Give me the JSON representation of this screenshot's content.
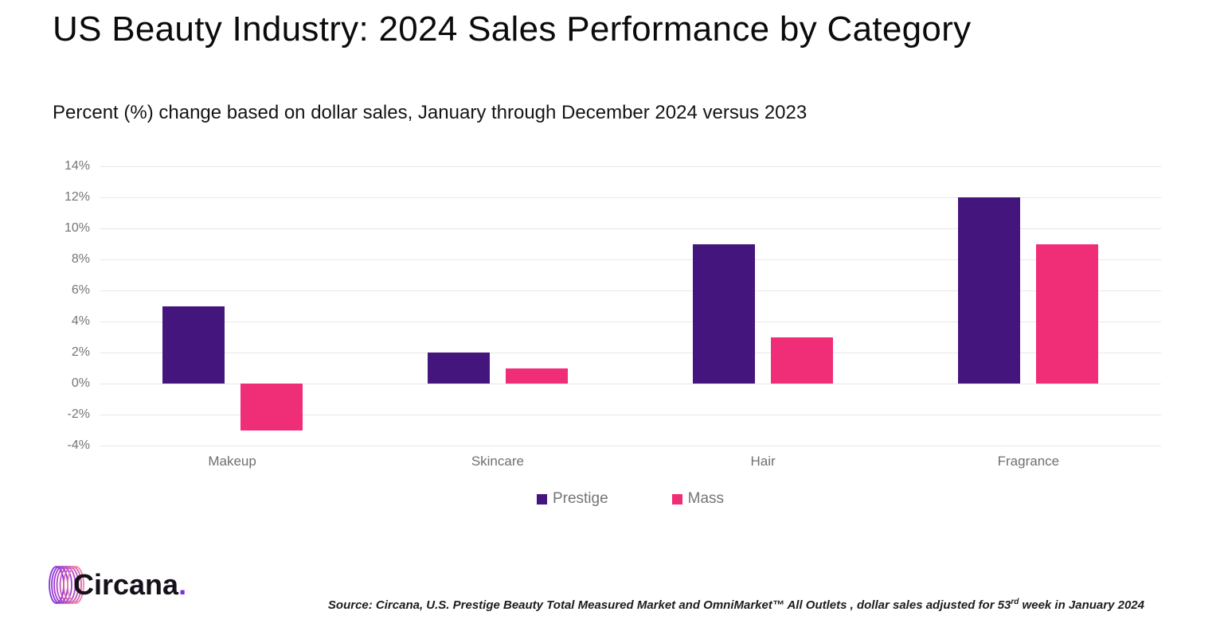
{
  "header": {
    "title": "US Beauty Industry: 2024 Sales Performance by Category",
    "subtitle": "Percent (%) change based on dollar sales, January through December 2024 versus 2023"
  },
  "chart_data": {
    "type": "bar",
    "categories": [
      "Makeup",
      "Skincare",
      "Hair",
      "Fragrance"
    ],
    "series": [
      {
        "name": "Prestige",
        "color": "#44157c",
        "values": [
          5,
          2,
          9,
          12
        ]
      },
      {
        "name": "Mass",
        "color": "#f02d77",
        "values": [
          -3,
          1,
          3,
          9
        ]
      }
    ],
    "ylim": [
      -4,
      14
    ],
    "ytick_step": 2,
    "ytick_labels": [
      "14%",
      "12%",
      "10%",
      "8%",
      "6%",
      "4%",
      "2%",
      "0%",
      "-2%",
      "-4%"
    ],
    "xlabel": "",
    "ylabel": "",
    "grid": true,
    "legend_position": "bottom-center"
  },
  "colors": {
    "prestige": "#44157c",
    "mass": "#f02d77",
    "gridline": "#e8e8e8",
    "axis_text": "#757575",
    "logo_dot": "#7b2ee0"
  },
  "footer": {
    "logo_text": "Circana",
    "logo_dot": ".",
    "source_prefix": "Source: Circana, U.S. Prestige Beauty Total Measured Market and OmniMarket™ All Outlets , dollar sales adjusted for 53",
    "source_sup": "rd",
    "source_suffix": " week in January 2024"
  }
}
